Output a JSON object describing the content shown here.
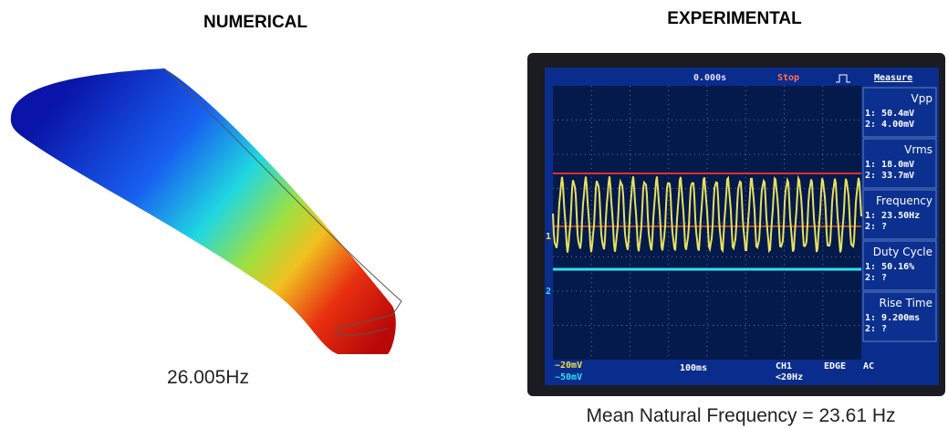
{
  "numerical": {
    "title": "NUMERICAL",
    "frequency": "26.005Hz"
  },
  "experimental": {
    "title": "EXPERIMENTAL",
    "caption": "Mean Natural Frequency = 23.61 Hz",
    "scope": {
      "timebase": "0.000s",
      "status": "Stop",
      "menu": "Measure",
      "measurements": [
        {
          "name": "Vpp",
          "ch1": "1: 50.4mV",
          "ch2": "2: 4.00mV"
        },
        {
          "name": "Vrms",
          "ch1": "1: 18.0mV",
          "ch2": "2: 33.7mV"
        },
        {
          "name": "Frequency",
          "ch1": "1: 23.50Hz",
          "ch2": "2: ?"
        },
        {
          "name": "Duty Cycle",
          "ch1": "1: 50.16%",
          "ch2": "2: ?"
        },
        {
          "name": "Rise Time",
          "ch1": "1: 9.200ms",
          "ch2": "2: ?"
        }
      ],
      "channel_markers": [
        "1",
        "2"
      ],
      "ch1_scale": "~20mV",
      "ch2_scale": "~50mV",
      "time_scale": "100ms",
      "trigger_source": "CH1",
      "trigger_note": "<20Hz",
      "trigger_type": "EDGE",
      "coupling": "AC"
    }
  }
}
